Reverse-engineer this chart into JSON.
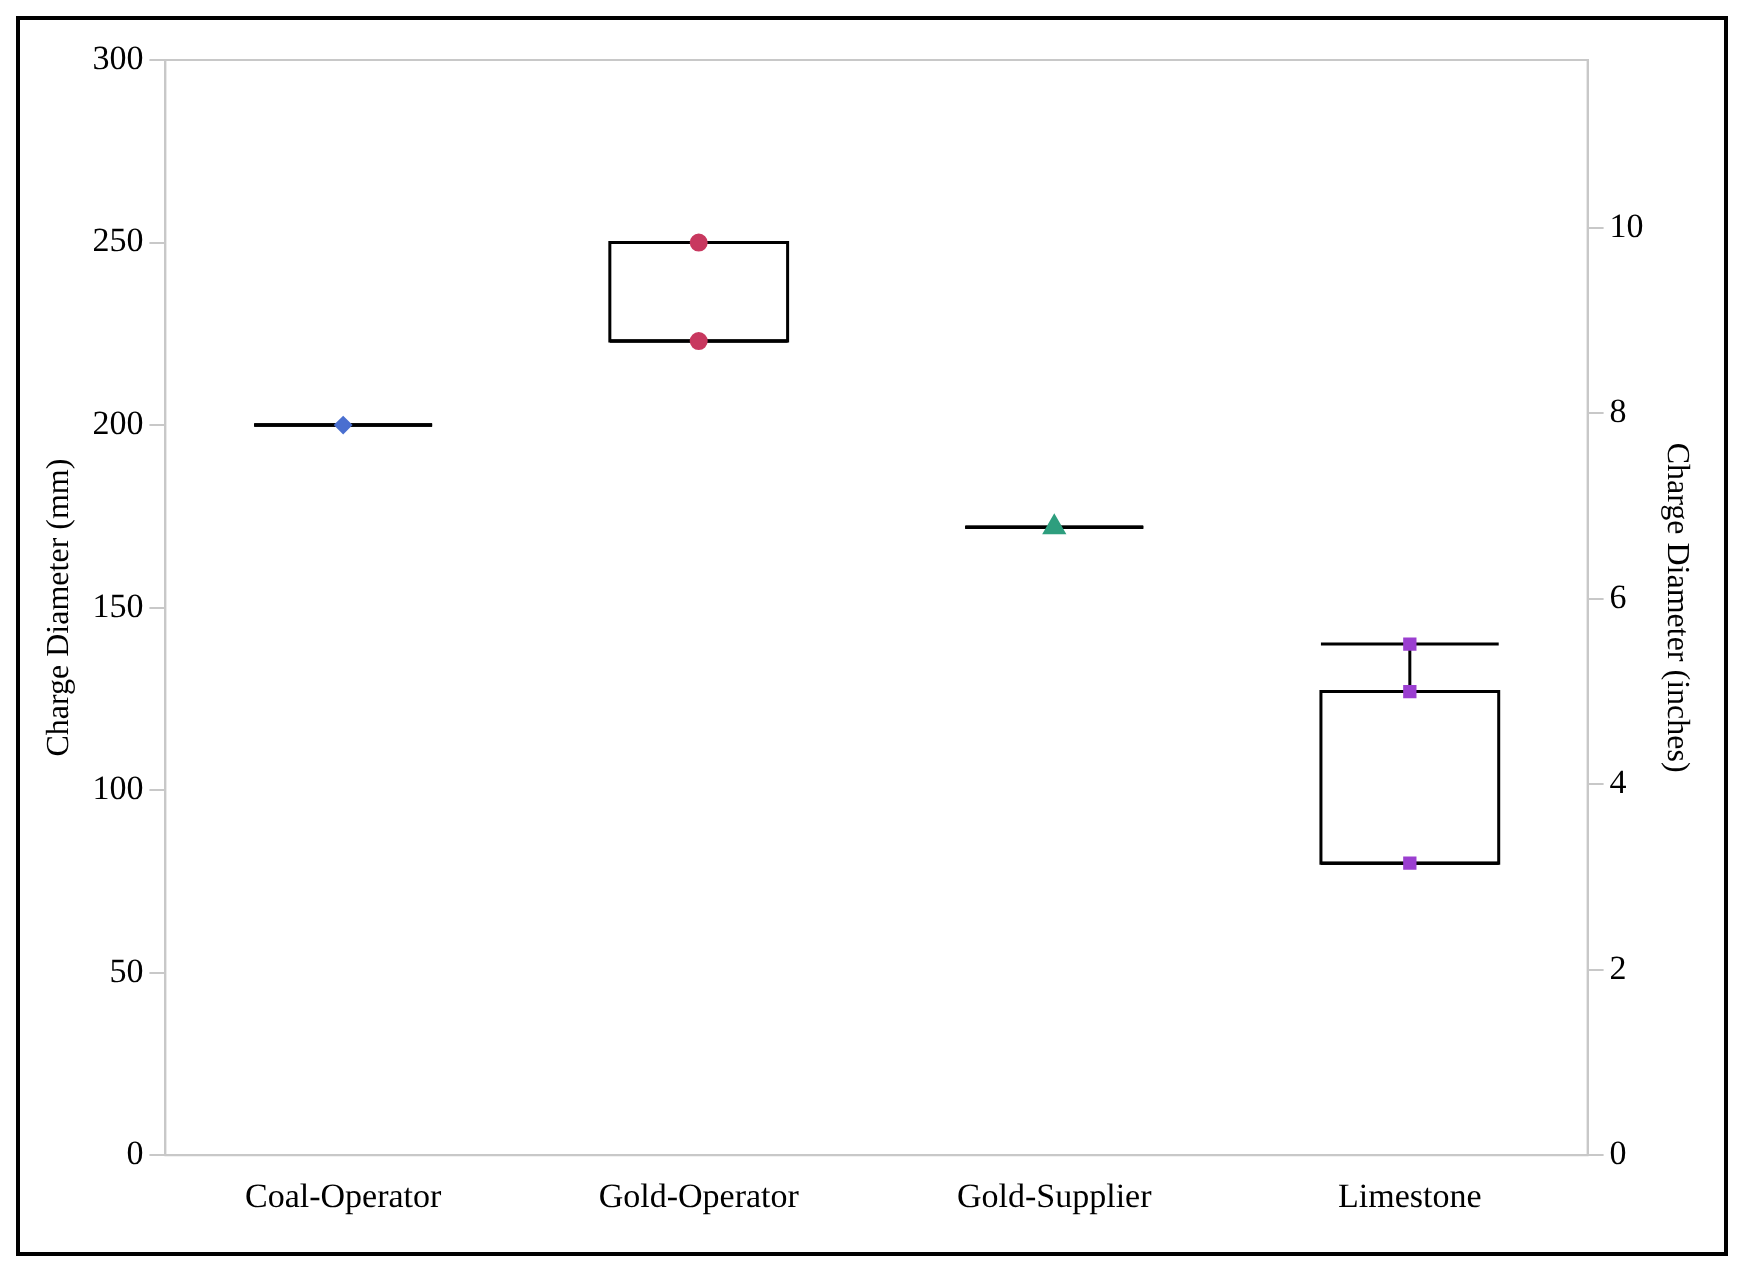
{
  "chart_data": {
    "type": "box",
    "categories": [
      "Coal-Operator",
      "Gold-Operator",
      "Gold-Supplier",
      "Limestone"
    ],
    "boxes": [
      {
        "low": 200,
        "q1": 200,
        "median": 200,
        "q3": 200,
        "high": 200
      },
      {
        "low": 223,
        "q1": 223,
        "median": 223,
        "q3": 250,
        "high": 250
      },
      {
        "low": 172,
        "q1": 172,
        "median": 172,
        "q3": 172,
        "high": 172
      },
      {
        "low": 80,
        "q1": 80,
        "median": 80,
        "q3": 127,
        "high": 140
      }
    ],
    "series": [
      {
        "type": "scatter",
        "marker": "diamond",
        "color": "#4a6fd0",
        "x": [
          "Coal-Operator"
        ],
        "values": [
          200
        ]
      },
      {
        "type": "scatter",
        "marker": "circle",
        "color": "#c8385f",
        "x": [
          "Gold-Operator",
          "Gold-Operator"
        ],
        "values": [
          250,
          223
        ]
      },
      {
        "type": "scatter",
        "marker": "triangle",
        "color": "#2e9e7e",
        "x": [
          "Gold-Supplier"
        ],
        "values": [
          172
        ]
      },
      {
        "type": "scatter",
        "marker": "square",
        "color": "#9b3fd0",
        "x": [
          "Limestone",
          "Limestone",
          "Limestone"
        ],
        "values": [
          140,
          127,
          80
        ]
      }
    ],
    "ylabel": "Charge Diameter (mm)",
    "y2label": "Charge Diameter (inches)",
    "ylim": [
      0,
      300
    ],
    "yticks": [
      0,
      50,
      100,
      150,
      200,
      250,
      300
    ],
    "y2lim": [
      0,
      11.81
    ],
    "y2ticks": [
      0,
      2,
      4,
      6,
      8,
      10
    ],
    "color": "#000000",
    "grid": false,
    "legend": false
  }
}
